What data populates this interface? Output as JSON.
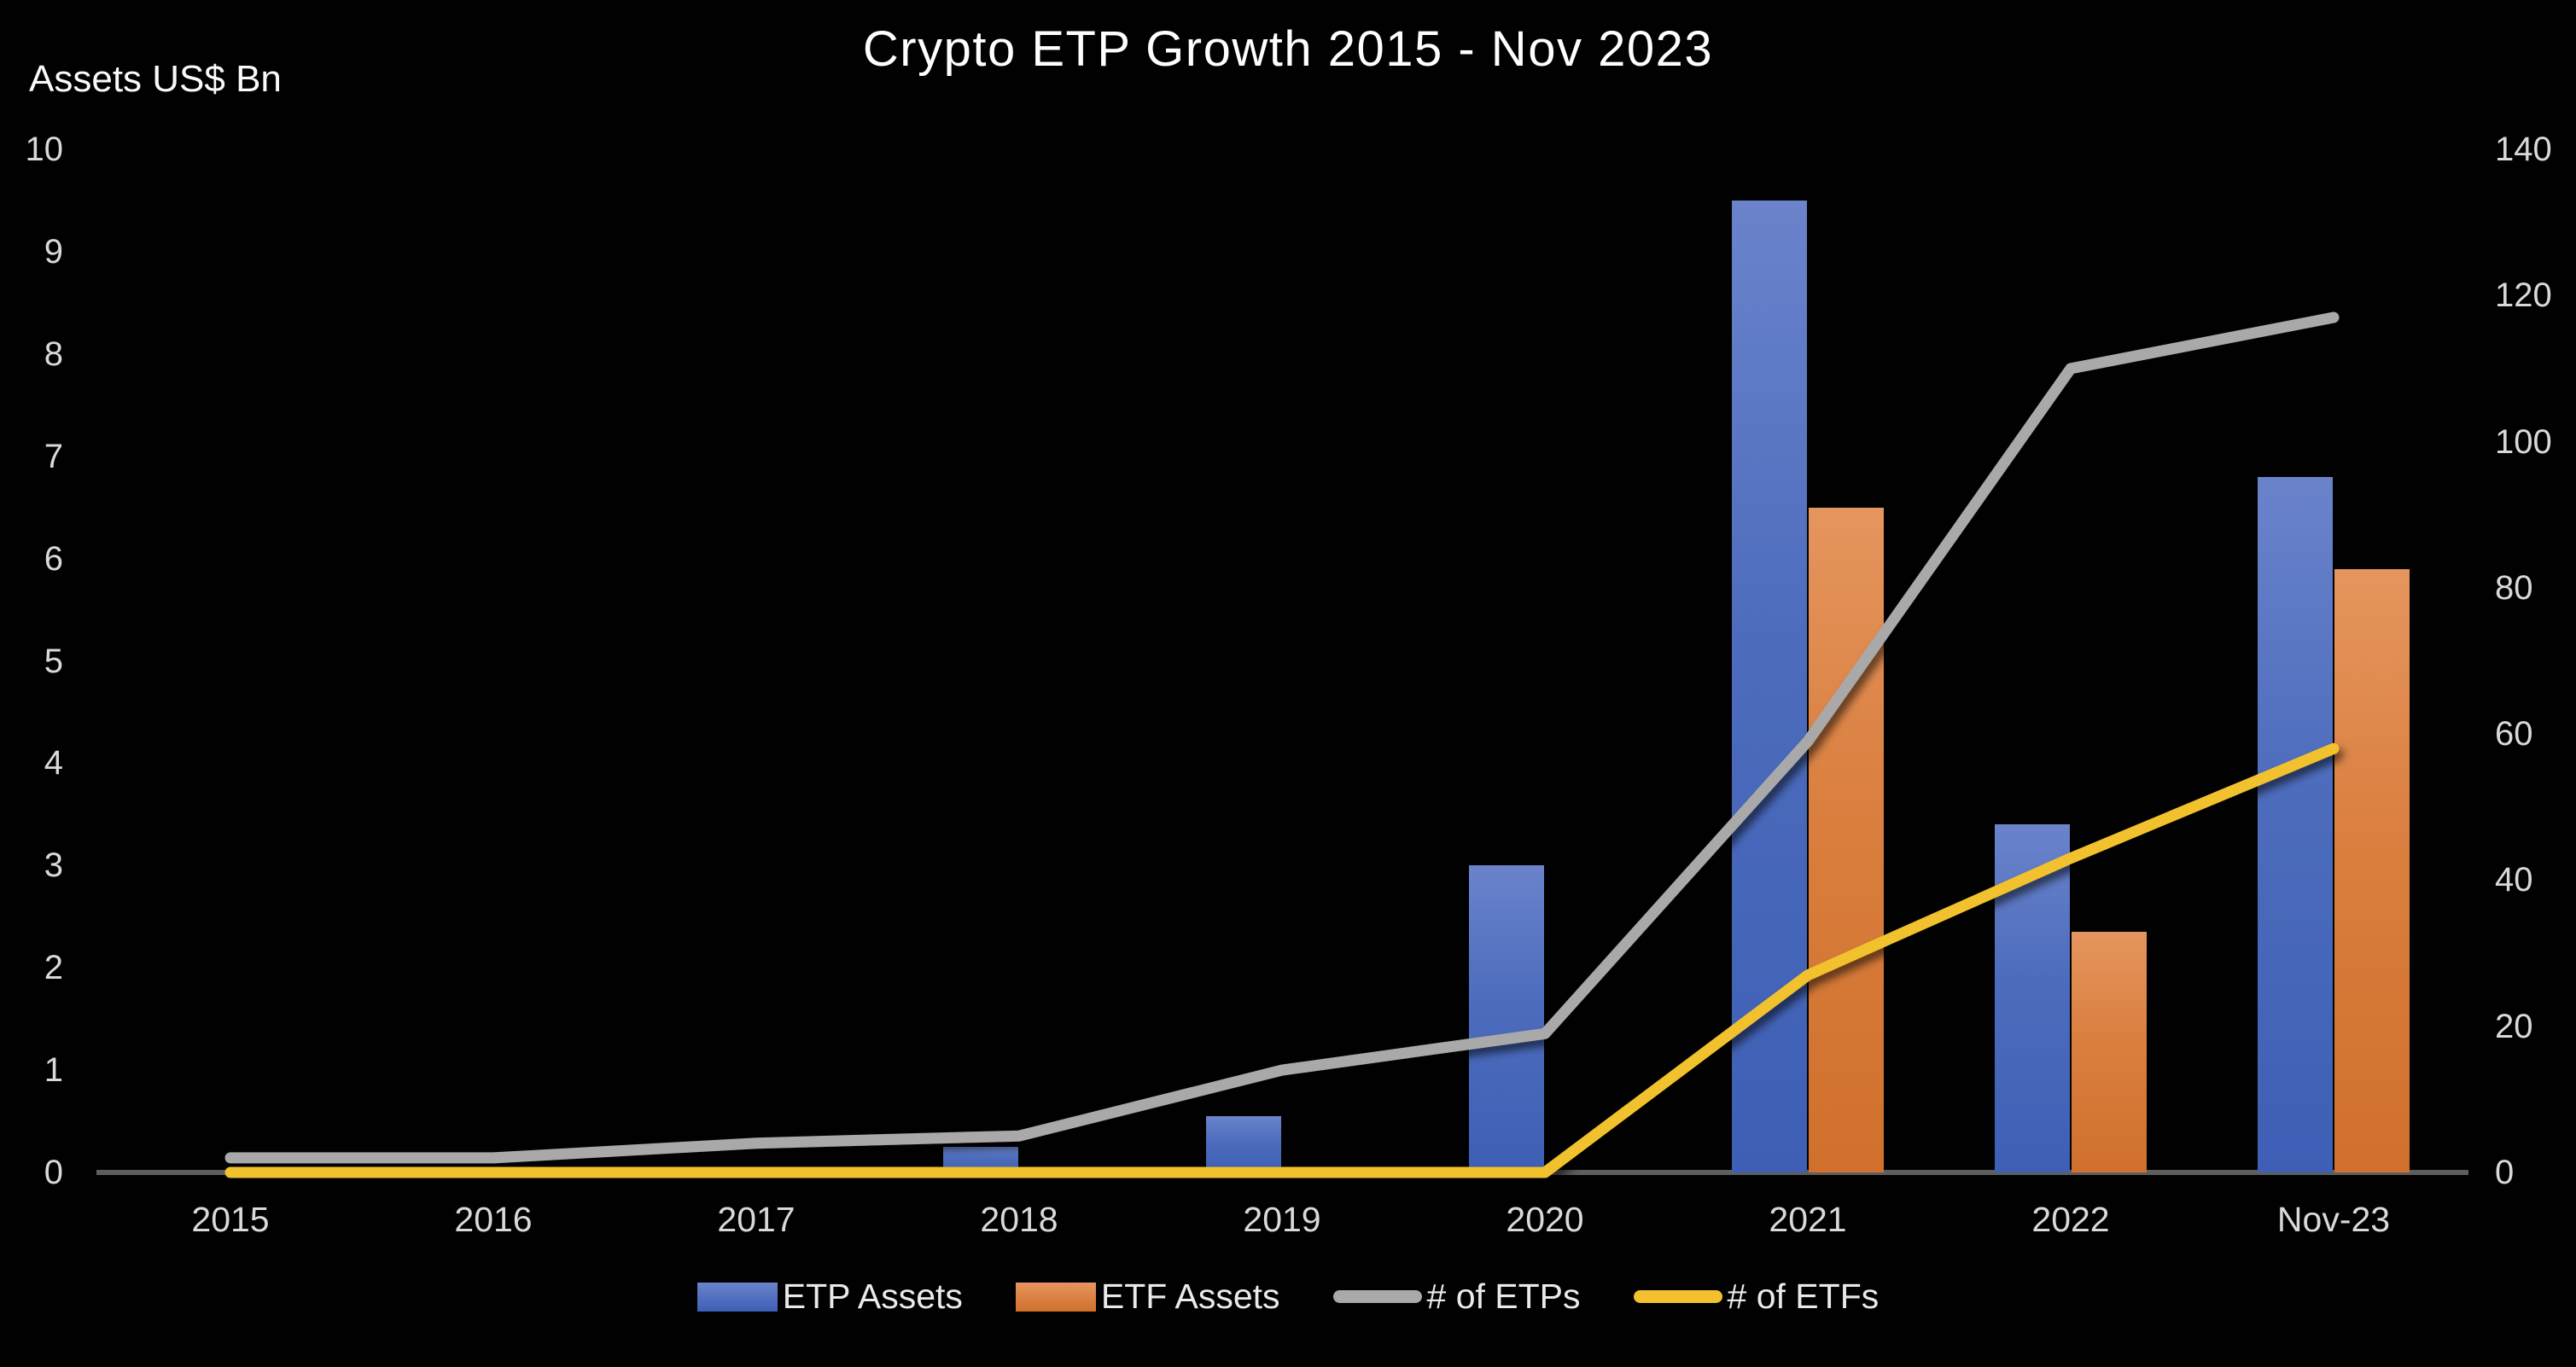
{
  "title": "Crypto ETP Growth 2015 - Nov 2023",
  "y_left_label": "Assets US$ Bn",
  "chart_data": {
    "type": "bar+line combo",
    "title": "Crypto ETP Growth 2015 - Nov 2023",
    "categories": [
      "2015",
      "2016",
      "2017",
      "2018",
      "2019",
      "2020",
      "2021",
      "2022",
      "Nov-23"
    ],
    "series": [
      {
        "name": "ETP Assets",
        "type": "bar",
        "axis": "left",
        "color_top": "#6a83cb",
        "color_bottom": "#3e5fb5",
        "values": [
          0,
          0,
          0,
          0.25,
          0.55,
          3.0,
          9.5,
          3.4,
          6.8
        ]
      },
      {
        "name": "ETF Assets",
        "type": "bar",
        "axis": "left",
        "color_top": "#e5955e",
        "color_bottom": "#d0702c",
        "values": [
          0,
          0,
          0,
          0,
          0,
          0,
          6.5,
          2.35,
          5.9
        ]
      },
      {
        "name": "# of ETPs",
        "type": "line",
        "axis": "right",
        "color": "#a9a9a9",
        "values": [
          2,
          2,
          4,
          5,
          14,
          19,
          59,
          110,
          117
        ]
      },
      {
        "name": "# of ETFs",
        "type": "line",
        "axis": "right",
        "color": "#f2c12d",
        "values": [
          0,
          0,
          0,
          0,
          0,
          0,
          27,
          43,
          58
        ]
      }
    ],
    "left_axis": {
      "label": "Assets US$ Bn",
      "range": [
        0,
        10
      ],
      "ticks": [
        0,
        1,
        2,
        3,
        4,
        5,
        6,
        7,
        8,
        9,
        10
      ]
    },
    "right_axis": {
      "range": [
        0,
        140
      ],
      "ticks": [
        0,
        20,
        40,
        60,
        80,
        100,
        120,
        140
      ]
    },
    "grid": false,
    "legend_position": "bottom",
    "background": "#000000",
    "axis_line_color": "#5e5e5e",
    "tick_text_color": "#d9d9d9"
  }
}
